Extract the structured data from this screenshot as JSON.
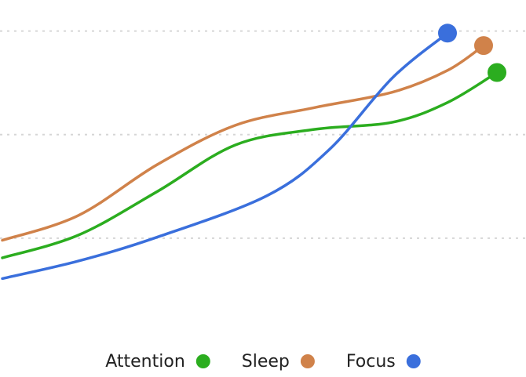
{
  "chart_data": {
    "type": "line",
    "ylim": [
      0,
      3.3
    ],
    "yticks": [
      1,
      2,
      3
    ],
    "xlim": [
      0,
      10
    ],
    "grid": true,
    "legend": "bottom",
    "series": [
      {
        "name": "Attention",
        "color": "#2bad1f",
        "x": [
          0,
          1.54,
          3.13,
          4.71,
          6.3,
          7.89,
          9.0,
          10
        ],
        "values": [
          0.81,
          1.03,
          1.45,
          1.9,
          2.05,
          2.12,
          2.31,
          2.6
        ]
      },
      {
        "name": "Sleep",
        "color": "#d0824a",
        "x": [
          0,
          1.54,
          3.13,
          4.71,
          6.3,
          7.89,
          9.0,
          9.73
        ],
        "values": [
          0.98,
          1.22,
          1.71,
          2.09,
          2.26,
          2.41,
          2.62,
          2.86
        ]
      },
      {
        "name": "Focus",
        "color": "#3a6fdc",
        "x": [
          0,
          1.54,
          3.13,
          5.35,
          6.62,
          7.89,
          9.0
        ],
        "values": [
          0.61,
          0.78,
          1.01,
          1.41,
          1.86,
          2.55,
          2.98
        ]
      }
    ]
  }
}
